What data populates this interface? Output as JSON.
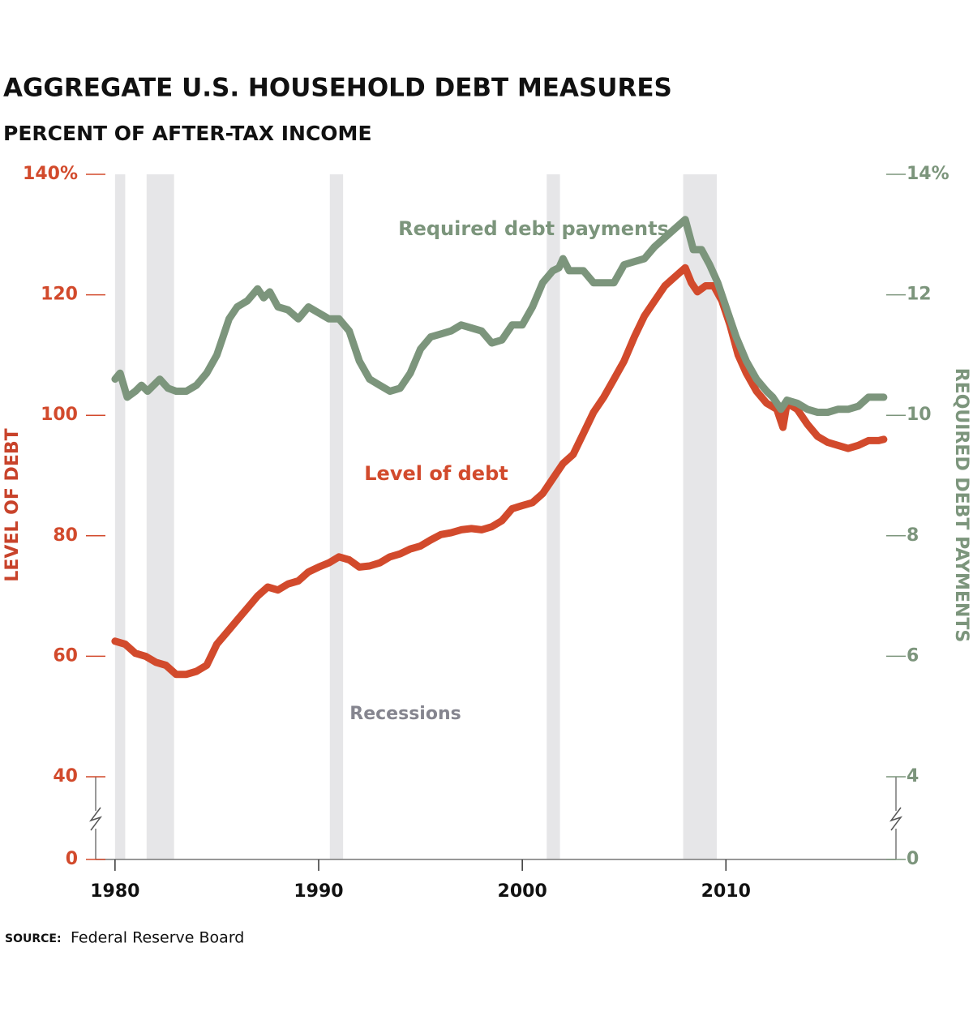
{
  "chart_data": {
    "type": "line",
    "title": "AGGREGATE U.S. HOUSEHOLD DEBT MEASURES",
    "subtitle": "PERCENT OF AFTER-TAX INCOME",
    "ylabel": "LEVEL OF DEBT",
    "y2label": "REQUIRED DEBT PAYMENTS",
    "source_label": "SOURCE:",
    "source": "Federal Reserve Board",
    "xlim": [
      1979.05,
      2018.35
    ],
    "xticks": [
      1980,
      1990,
      2000,
      2010
    ],
    "ylim": [
      40,
      140
    ],
    "yticks": [
      0,
      40,
      60,
      80,
      100,
      120,
      {
        "value": 140,
        "label": "140%"
      }
    ],
    "y2lim": [
      4,
      14
    ],
    "y2ticks": [
      0,
      4,
      6,
      8,
      10,
      12,
      {
        "value": 14,
        "label": "14%"
      }
    ],
    "axis_break": true,
    "recession_label": "Recessions",
    "recession_color": "#e6e6e8",
    "recessions": [
      [
        1980.0,
        1980.5
      ],
      [
        1981.55,
        1982.9
      ],
      [
        1990.55,
        1991.2
      ],
      [
        2001.2,
        2001.85
      ],
      [
        2007.9,
        2009.55
      ]
    ],
    "series": [
      {
        "name": "Level of debt",
        "color": "#d24a2c",
        "axis": "y",
        "x": [
          1980,
          1980.5,
          1981,
          1981.5,
          1982,
          1982.5,
          1983,
          1983.5,
          1984,
          1984.5,
          1985,
          1985.5,
          1986,
          1986.5,
          1987,
          1987.5,
          1988,
          1988.5,
          1989,
          1989.5,
          1990,
          1990.5,
          1991,
          1991.5,
          1992,
          1992.5,
          1993,
          1993.5,
          1994,
          1994.5,
          1995,
          1995.5,
          1996,
          1996.5,
          1997,
          1997.5,
          1998,
          1998.5,
          1999,
          1999.5,
          2000,
          2000.5,
          2001,
          2001.5,
          2002,
          2002.5,
          2003,
          2003.5,
          2004,
          2004.5,
          2005,
          2005.5,
          2006,
          2006.5,
          2007,
          2007.5,
          2008,
          2008.3,
          2008.6,
          2009,
          2009.4,
          2009.8,
          2010.2,
          2010.6,
          2011,
          2011.5,
          2012,
          2012.5,
          2012.8,
          2013,
          2013.5,
          2014,
          2014.5,
          2015,
          2015.5,
          2016,
          2016.5,
          2017,
          2017.5,
          2017.75
        ],
        "values": [
          62.5,
          62,
          60.5,
          60,
          59,
          58.5,
          57,
          57,
          57.5,
          58.5,
          62,
          64,
          66,
          68,
          70,
          71.5,
          71,
          72,
          72.5,
          74,
          74.8,
          75.5,
          76.5,
          76,
          74.8,
          75,
          75.5,
          76.5,
          77,
          77.8,
          78.3,
          79.3,
          80.2,
          80.5,
          81,
          81.2,
          81,
          81.5,
          82.5,
          84.5,
          85,
          85.5,
          87,
          89.5,
          92,
          93.5,
          97,
          100.5,
          103,
          106,
          109,
          113,
          116.5,
          119,
          121.5,
          123,
          124.5,
          122,
          120.5,
          121.5,
          121.5,
          119,
          115,
          110,
          107,
          104,
          102,
          101,
          98,
          102,
          101,
          98.5,
          96.5,
          95.5,
          95,
          94.5,
          95,
          95.8,
          95.8,
          96
        ]
      },
      {
        "name": "Required debt payments",
        "color": "#7c957c",
        "axis": "y2",
        "x": [
          1980,
          1980.25,
          1980.6,
          1981,
          1981.3,
          1981.6,
          1982.2,
          1982.6,
          1983,
          1983.5,
          1984,
          1984.5,
          1985,
          1985.3,
          1985.6,
          1986,
          1986.5,
          1987,
          1987.3,
          1987.6,
          1988,
          1988.5,
          1989,
          1989.5,
          1990,
          1990.5,
          1991,
          1991.5,
          1992,
          1992.5,
          1993,
          1993.5,
          1994,
          1994.5,
          1995,
          1995.5,
          1996,
          1996.5,
          1997,
          1997.5,
          1998,
          1998.5,
          1999,
          1999.5,
          2000,
          2000.5,
          2001,
          2001.5,
          2001.8,
          2002,
          2002.3,
          2003,
          2003.5,
          2004,
          2004.5,
          2005,
          2005.5,
          2006,
          2006.5,
          2007,
          2007.5,
          2008,
          2008.4,
          2008.8,
          2009.2,
          2009.6,
          2010,
          2010.5,
          2011,
          2011.5,
          2012,
          2012.3,
          2012.7,
          2013,
          2013.5,
          2014,
          2014.5,
          2015,
          2015.5,
          2016,
          2016.5,
          2017,
          2017.5,
          2017.75
        ],
        "values": [
          10.6,
          10.7,
          10.3,
          10.4,
          10.5,
          10.4,
          10.6,
          10.45,
          10.4,
          10.4,
          10.5,
          10.7,
          11.0,
          11.3,
          11.6,
          11.8,
          11.9,
          12.1,
          11.95,
          12.05,
          11.8,
          11.75,
          11.6,
          11.8,
          11.7,
          11.6,
          11.6,
          11.4,
          10.9,
          10.6,
          10.5,
          10.4,
          10.45,
          10.7,
          11.1,
          11.3,
          11.35,
          11.4,
          11.5,
          11.45,
          11.4,
          11.2,
          11.25,
          11.5,
          11.5,
          11.8,
          12.2,
          12.4,
          12.45,
          12.6,
          12.4,
          12.4,
          12.2,
          12.2,
          12.2,
          12.5,
          12.55,
          12.6,
          12.8,
          12.95,
          13.1,
          13.25,
          12.75,
          12.75,
          12.5,
          12.2,
          11.8,
          11.3,
          10.9,
          10.6,
          10.4,
          10.3,
          10.1,
          10.25,
          10.2,
          10.1,
          10.05,
          10.05,
          10.1,
          10.1,
          10.15,
          10.3,
          10.3,
          10.3
        ]
      }
    ]
  }
}
